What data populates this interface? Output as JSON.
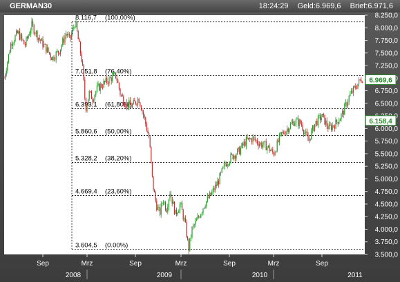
{
  "header": {
    "symbol": "GERMAN30",
    "time": "18:24:29",
    "bid": "Geld:6.969,6",
    "ask": "Brief:6.971,6"
  },
  "chart_data": {
    "type": "candlestick",
    "ylim": [
      3500,
      8250
    ],
    "y_ticks": [
      {
        "value": 3500,
        "label": "3.500,0"
      },
      {
        "value": 3750,
        "label": "3.750,0"
      },
      {
        "value": 4000,
        "label": "4.000,0"
      },
      {
        "value": 4250,
        "label": "4.250,0"
      },
      {
        "value": 4500,
        "label": "4.500,0"
      },
      {
        "value": 4750,
        "label": "4.750,0"
      },
      {
        "value": 5000,
        "label": "5.000,0"
      },
      {
        "value": 5250,
        "label": "5.250,0"
      },
      {
        "value": 5500,
        "label": "5.500,0"
      },
      {
        "value": 5750,
        "label": "5.750,0"
      },
      {
        "value": 6000,
        "label": "6.000,0"
      },
      {
        "value": 6250,
        "label": "6.250,0"
      },
      {
        "value": 6500,
        "label": "6.500,0"
      },
      {
        "value": 6750,
        "label": "6.750,0"
      },
      {
        "value": 7000,
        "label": "7.000,0"
      },
      {
        "value": 7250,
        "label": "7.250,0"
      },
      {
        "value": 7500,
        "label": "7.500,0"
      },
      {
        "value": 7750,
        "label": "7.750,0"
      },
      {
        "value": 8000,
        "label": "8.000,0"
      },
      {
        "value": 8250,
        "label": "8.250,0"
      }
    ],
    "month_ticks": [
      "Sep",
      "Mrz",
      "Sep",
      "Mrz",
      "Sep",
      "Mrz",
      "Sep"
    ],
    "year_ticks": [
      "2008",
      "2009",
      "2010",
      "2011"
    ],
    "fibonacci": [
      {
        "value": 8116.7,
        "label": "8.116,7",
        "pct": "(100,00%)"
      },
      {
        "value": 7051.8,
        "label": "7.051,8",
        "pct": "(76,40%)"
      },
      {
        "value": 6393.1,
        "label": "6.393,1",
        "pct": "(61,80%)"
      },
      {
        "value": 5860.6,
        "label": "5.860,6",
        "pct": "(50,00%)"
      },
      {
        "value": 5328.2,
        "label": "5.328,2",
        "pct": "(38,20%)"
      },
      {
        "value": 4669.4,
        "label": "4.669,4",
        "pct": "(23,60%)"
      },
      {
        "value": 3604.5,
        "label": "3.604,5",
        "pct": "(0.00%)"
      }
    ],
    "price_markers": [
      {
        "value": 6969.6,
        "label": "6.969,6",
        "color": "#2a8a2a"
      },
      {
        "value": 6158.4,
        "label": "6.158,4",
        "color": "#2a8a2a"
      }
    ],
    "price_path": [
      [
        0,
        7000
      ],
      [
        10,
        7700
      ],
      [
        20,
        7900
      ],
      [
        30,
        7650
      ],
      [
        40,
        8050
      ],
      [
        50,
        7800
      ],
      [
        60,
        7600
      ],
      [
        70,
        7400
      ],
      [
        80,
        7550
      ],
      [
        90,
        7900
      ],
      [
        95,
        7750
      ],
      [
        103,
        8116.7
      ],
      [
        108,
        7700
      ],
      [
        113,
        7300
      ],
      [
        118,
        6400
      ],
      [
        123,
        6700
      ],
      [
        128,
        6600
      ],
      [
        135,
        6800
      ],
      [
        145,
        6900
      ],
      [
        155,
        7000
      ],
      [
        162,
        7051.8
      ],
      [
        168,
        6700
      ],
      [
        175,
        6500
      ],
      [
        185,
        6450
      ],
      [
        195,
        6600
      ],
      [
        203,
        6200
      ],
      [
        210,
        5800
      ],
      [
        215,
        4900
      ],
      [
        220,
        4500
      ],
      [
        225,
        4300
      ],
      [
        230,
        4600
      ],
      [
        235,
        4400
      ],
      [
        240,
        4750
      ],
      [
        248,
        4300
      ],
      [
        255,
        4500
      ],
      [
        262,
        4100
      ],
      [
        267,
        3604.5
      ],
      [
        272,
        4000
      ],
      [
        280,
        4200
      ],
      [
        290,
        4500
      ],
      [
        300,
        4700
      ],
      [
        310,
        4950
      ],
      [
        320,
        5300
      ],
      [
        330,
        5450
      ],
      [
        340,
        5550
      ],
      [
        350,
        5750
      ],
      [
        360,
        5800
      ],
      [
        370,
        5700
      ],
      [
        380,
        5650
      ],
      [
        390,
        5500
      ],
      [
        400,
        5850
      ],
      [
        410,
        6000
      ],
      [
        420,
        6150
      ],
      [
        430,
        6100
      ],
      [
        440,
        5750
      ],
      [
        450,
        6100
      ],
      [
        460,
        6250
      ],
      [
        470,
        6000
      ],
      [
        480,
        6100
      ],
      [
        490,
        6300
      ],
      [
        500,
        6650
      ],
      [
        510,
        6850
      ],
      [
        518,
        7000
      ],
      [
        524,
        6969.6
      ]
    ]
  }
}
